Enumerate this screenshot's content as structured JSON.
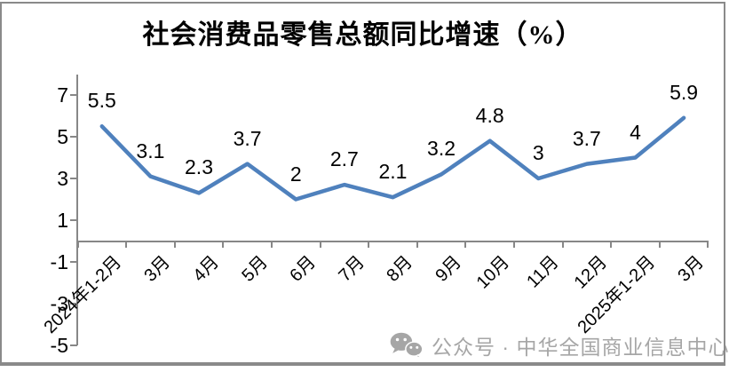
{
  "title": "社会消费品零售总额同比增速（%）",
  "watermark": {
    "icon": "wechat-icon",
    "text": "公众号 · 中华全国商业信息中心",
    "color": "#a6a6a6"
  },
  "chart_data": {
    "type": "line",
    "title": "社会消费品零售总额同比增速（%）",
    "categories": [
      "2024年1-2月",
      "3月",
      "4月",
      "5月",
      "6月",
      "7月",
      "8月",
      "9月",
      "10月",
      "11月",
      "12月",
      "2025年1-2月",
      "3月"
    ],
    "values": [
      5.5,
      3.1,
      2.3,
      3.7,
      2,
      2.7,
      2.1,
      3.2,
      4.8,
      3,
      3.7,
      4,
      5.9
    ],
    "data_labels_shown": true,
    "xlabel": "",
    "ylabel": "",
    "ylim": [
      -5,
      8
    ],
    "yticks": [
      7,
      5,
      3,
      1,
      -1,
      -3,
      -5
    ],
    "x_tick_rotation": 45,
    "grid": false,
    "legend_position": "none",
    "line_color": "#4F81BD",
    "axis_color": "#878787",
    "label_color": "#000000"
  }
}
